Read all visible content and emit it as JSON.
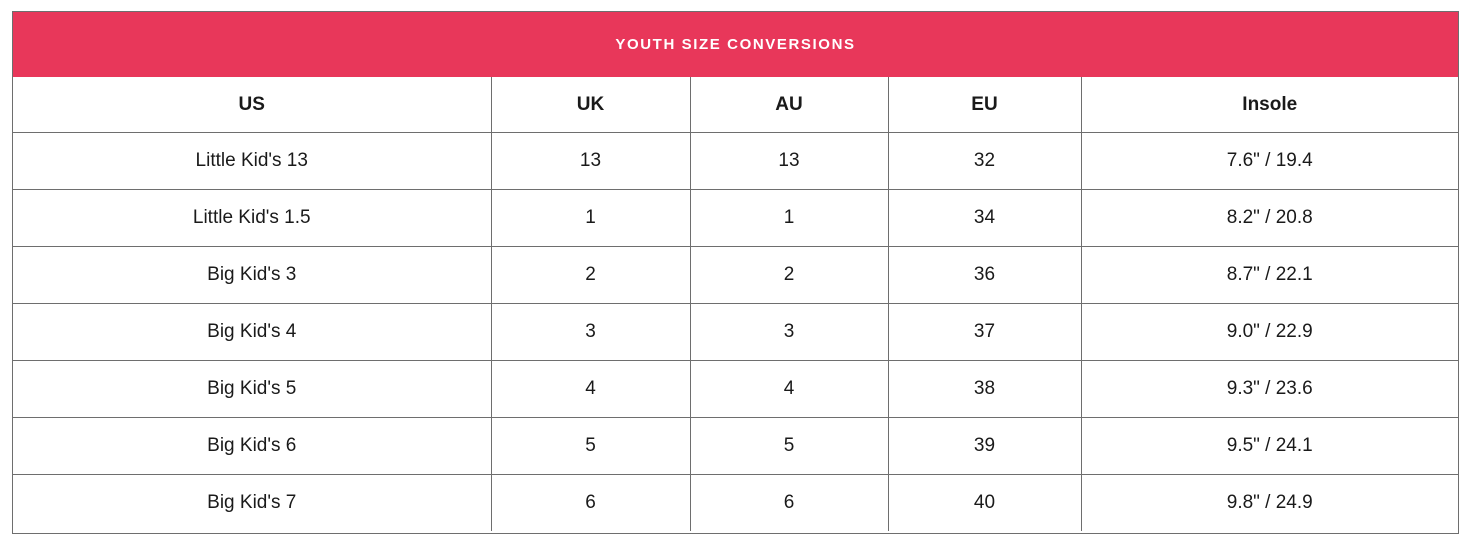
{
  "table": {
    "title": "YOUTH SIZE CONVERSIONS",
    "accent_color": "#e8375a",
    "headers": [
      "US",
      "UK",
      "AU",
      "EU",
      "Insole"
    ],
    "rows": [
      [
        "Little Kid's 13",
        "13",
        "13",
        "32",
        "7.6\" / 19.4"
      ],
      [
        "Little Kid's 1.5",
        "1",
        "1",
        "34",
        "8.2\" / 20.8"
      ],
      [
        "Big Kid's 3",
        "2",
        "2",
        "36",
        "8.7\" / 22.1"
      ],
      [
        "Big Kid's 4",
        "3",
        "3",
        "37",
        "9.0\" / 22.9"
      ],
      [
        "Big Kid's 5",
        "4",
        "4",
        "38",
        "9.3\" / 23.6"
      ],
      [
        "Big Kid's 6",
        "5",
        "5",
        "39",
        "9.5\" / 24.1"
      ],
      [
        "Big Kid's 7",
        "6",
        "6",
        "40",
        "9.8\" / 24.9"
      ]
    ]
  }
}
